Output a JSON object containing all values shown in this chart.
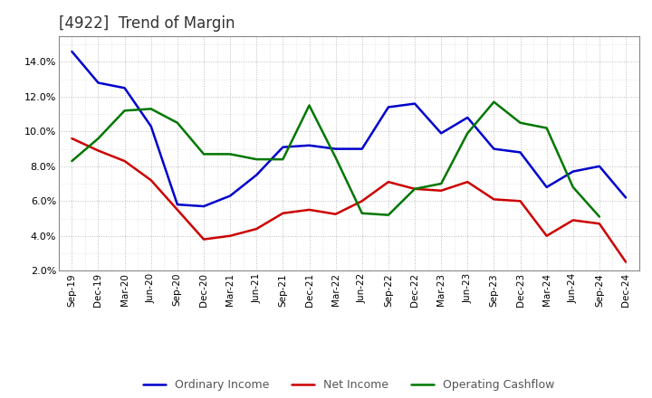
{
  "title": "[4922]  Trend of Margin",
  "x_labels": [
    "Sep-19",
    "Dec-19",
    "Mar-20",
    "Jun-20",
    "Sep-20",
    "Dec-20",
    "Mar-21",
    "Jun-21",
    "Sep-21",
    "Dec-21",
    "Mar-22",
    "Jun-22",
    "Sep-22",
    "Dec-22",
    "Mar-23",
    "Jun-23",
    "Sep-23",
    "Dec-23",
    "Mar-24",
    "Jun-24",
    "Sep-24",
    "Dec-24"
  ],
  "ordinary_income": [
    14.6,
    12.8,
    12.5,
    10.3,
    5.8,
    5.7,
    6.3,
    7.5,
    9.1,
    9.2,
    9.0,
    9.0,
    11.4,
    11.6,
    9.9,
    10.8,
    9.0,
    8.8,
    6.8,
    7.7,
    8.0,
    6.2
  ],
  "net_income": [
    9.6,
    8.9,
    8.3,
    7.2,
    5.5,
    3.8,
    4.0,
    4.4,
    5.3,
    5.5,
    5.25,
    6.0,
    7.1,
    6.7,
    6.6,
    7.1,
    6.1,
    6.0,
    4.0,
    4.9,
    4.7,
    2.5
  ],
  "operating_cashflow": [
    8.3,
    9.6,
    11.2,
    11.3,
    10.5,
    8.7,
    8.7,
    8.4,
    8.4,
    11.5,
    8.5,
    5.3,
    5.2,
    6.7,
    7.0,
    9.9,
    11.7,
    10.5,
    10.2,
    6.8,
    5.1,
    null
  ],
  "ylim": [
    2.0,
    15.5
  ],
  "yticks": [
    2.0,
    4.0,
    6.0,
    8.0,
    10.0,
    12.0,
    14.0
  ],
  "line_colors": {
    "ordinary_income": "#0000CC",
    "net_income": "#CC0000",
    "operating_cashflow": "#007700"
  },
  "legend_labels": [
    "Ordinary Income",
    "Net Income",
    "Operating Cashflow"
  ],
  "background_color": "#FFFFFF",
  "plot_bg_color": "#FFFFFF",
  "grid_color": "#BBBBBB",
  "title_color": "#333333"
}
